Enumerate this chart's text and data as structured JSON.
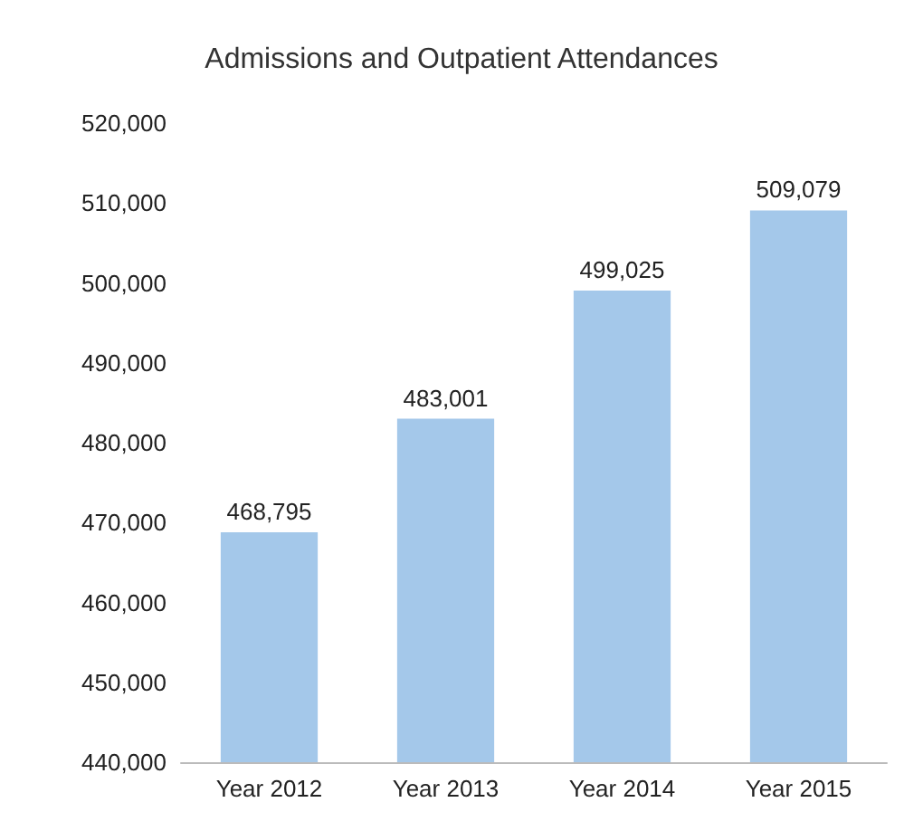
{
  "chart_data": {
    "type": "bar",
    "title": "Admissions and Outpatient Attendances",
    "categories": [
      "Year 2012",
      "Year 2013",
      "Year 2014",
      "Year 2015"
    ],
    "values": [
      468795,
      483001,
      499025,
      509079
    ],
    "color": "#a4c8ea",
    "value_labels": [
      "468,795",
      "483,001",
      "499,025",
      "509,079"
    ],
    "ylim": [
      440000,
      520000
    ],
    "yticks": [
      {
        "value": 440000,
        "label": "440,000"
      },
      {
        "value": 450000,
        "label": "450,000"
      },
      {
        "value": 460000,
        "label": "460,000"
      },
      {
        "value": 470000,
        "label": "470,000"
      },
      {
        "value": 480000,
        "label": "480,000"
      },
      {
        "value": 490000,
        "label": "490,000"
      },
      {
        "value": 500000,
        "label": "500,000"
      },
      {
        "value": 510000,
        "label": "510,000"
      },
      {
        "value": 520000,
        "label": "520,000"
      }
    ],
    "grid": false
  }
}
